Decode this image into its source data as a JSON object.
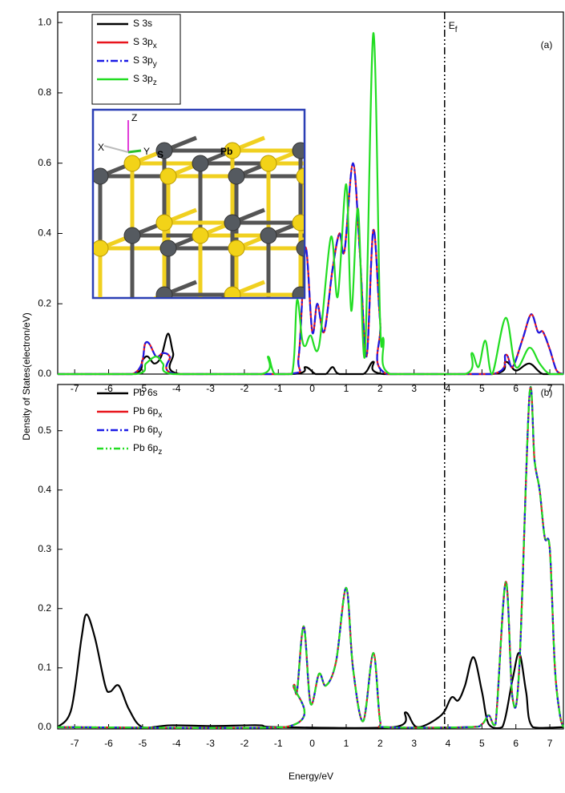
{
  "chart_data": [
    {
      "type": "line",
      "panel_label": "(a)",
      "ylabel": "Density of States(electron/eV)",
      "fermi_level": 3.9,
      "fermi_label": "E",
      "fermi_sub": "f",
      "xlim": [
        -7.5,
        7.4
      ],
      "ylim": [
        0,
        1.03
      ],
      "xticks": [
        -7,
        -6,
        -5,
        -4,
        -3,
        -2,
        -1,
        0,
        1,
        2,
        3,
        4,
        5,
        6,
        7
      ],
      "yticks": [
        {
          "value": 0,
          "label": "0.0"
        },
        0.2,
        0.4,
        0.6,
        0.8,
        {
          "value": 1,
          "label": "1.0"
        }
      ],
      "inset_labels": [
        "Z",
        "Y",
        "X",
        "S",
        "Pb"
      ],
      "series": [
        {
          "name": "S 3s",
          "sub": "",
          "color": "#000000",
          "dash": "solid",
          "x": [
            -7.5,
            -5.3,
            -5.0,
            -4.85,
            -4.65,
            -4.45,
            -4.25,
            -4.1,
            -3.9,
            -0.6,
            -0.2,
            0.1,
            0.4,
            0.6,
            0.8,
            1.5,
            1.8,
            2.1,
            5.3,
            5.7,
            6.0,
            6.4,
            6.8,
            7.4
          ],
          "values": [
            0,
            0,
            0.04,
            0.05,
            0.03,
            0.05,
            0.115,
            0.06,
            0,
            0,
            0.02,
            0,
            0,
            0.02,
            0,
            0,
            0.035,
            0,
            0,
            0.035,
            0.01,
            0.03,
            0,
            0
          ]
        },
        {
          "name": "S 3p",
          "sub": "x",
          "color": "#e8141c",
          "dash": "solid",
          "x": [
            -7.5,
            -5.3,
            -4.9,
            -4.6,
            -4.4,
            -4.2,
            -4.0,
            -0.7,
            -0.4,
            -0.2,
            0,
            0.15,
            0.35,
            0.6,
            0.8,
            0.95,
            1.2,
            1.4,
            1.6,
            1.8,
            2.0,
            2.2,
            5.3,
            5.7,
            5.9,
            6.2,
            6.45,
            6.65,
            6.8,
            7.0,
            7.2,
            7.4
          ],
          "values": [
            0,
            0,
            0.09,
            0.05,
            0.06,
            0.05,
            0,
            0,
            0.05,
            0.36,
            0.12,
            0.2,
            0.12,
            0.3,
            0.4,
            0.35,
            0.6,
            0.35,
            0.05,
            0.41,
            0.15,
            0,
            0,
            0.055,
            0.02,
            0.1,
            0.17,
            0.12,
            0.12,
            0.07,
            0.01,
            0
          ]
        },
        {
          "name": "S 3p",
          "sub": "y",
          "color": "#1a1ae6",
          "dash": "dashdot",
          "x": [
            -7.5,
            -5.3,
            -4.9,
            -4.6,
            -4.4,
            -4.2,
            -4.0,
            -0.7,
            -0.4,
            -0.2,
            0,
            0.15,
            0.35,
            0.6,
            0.8,
            0.95,
            1.2,
            1.4,
            1.6,
            1.8,
            2.0,
            2.2,
            5.3,
            5.7,
            5.9,
            6.2,
            6.45,
            6.65,
            6.8,
            7.0,
            7.2,
            7.4
          ],
          "values": [
            0,
            0,
            0.09,
            0.05,
            0.06,
            0.05,
            0,
            0,
            0.05,
            0.36,
            0.12,
            0.2,
            0.12,
            0.3,
            0.4,
            0.35,
            0.6,
            0.35,
            0.05,
            0.41,
            0.15,
            0,
            0,
            0.055,
            0.02,
            0.1,
            0.17,
            0.12,
            0.12,
            0.07,
            0.01,
            0
          ]
        },
        {
          "name": "S 3p",
          "sub": "z",
          "color": "#22dd22",
          "dash": "solid",
          "x": [
            -7.5,
            -5.2,
            -4.9,
            -4.6,
            -4.4,
            -4.1,
            -1.5,
            -1.3,
            -1.1,
            -0.6,
            -0.45,
            -0.3,
            -0.2,
            -0.05,
            0.2,
            0.55,
            0.75,
            1.0,
            1.15,
            1.35,
            1.55,
            1.8,
            2.0,
            2.1,
            2.3,
            4.5,
            4.7,
            4.9,
            5.1,
            5.3,
            5.7,
            6.0,
            6.4,
            6.7,
            7.0,
            7.4
          ],
          "values": [
            0,
            0,
            0.03,
            0.05,
            0.03,
            0,
            0,
            0.05,
            0,
            0,
            0.21,
            0.1,
            0.08,
            0.11,
            0.08,
            0.39,
            0.22,
            0.54,
            0.18,
            0.47,
            0.05,
            0.97,
            0.15,
            0.1,
            0,
            0,
            0.06,
            0.02,
            0.095,
            0,
            0.16,
            0.02,
            0.075,
            0.03,
            0,
            0
          ]
        }
      ]
    },
    {
      "type": "line",
      "panel_label": "(b)",
      "xlabel": "Energy/eV",
      "xlim": [
        -7.5,
        7.4
      ],
      "ylim": [
        -0.003,
        0.578
      ],
      "xticks": [
        -7,
        -6,
        -5,
        -4,
        -3,
        -2,
        -1,
        0,
        1,
        2,
        3,
        4,
        5,
        6,
        7
      ],
      "yticks": [
        {
          "value": 0,
          "label": "0.0"
        },
        0.1,
        0.2,
        0.3,
        0.4,
        0.5
      ],
      "series": [
        {
          "name": "Pb 6s",
          "sub": "",
          "color": "#000000",
          "dash": "solid",
          "x": [
            -7.5,
            -7.1,
            -6.8,
            -6.65,
            -6.4,
            -6.1,
            -5.95,
            -5.7,
            -5.4,
            -5.0,
            -4.2,
            -3,
            -2,
            -1.5,
            -1,
            2.4,
            2.75,
            3.1,
            3.8,
            4.1,
            4.3,
            4.5,
            4.75,
            5.0,
            5.2,
            5.6,
            5.9,
            6.1,
            6.3,
            6.5,
            7.4
          ],
          "values": [
            0,
            0.03,
            0.15,
            0.19,
            0.15,
            0.07,
            0.06,
            0.07,
            0.03,
            0,
            0.003,
            0.002,
            0.003,
            0.003,
            0,
            0,
            0.025,
            0,
            0.02,
            0.05,
            0.045,
            0.07,
            0.118,
            0.06,
            0.005,
            0,
            0.08,
            0.125,
            0.06,
            0,
            0
          ]
        },
        {
          "name": "Pb 6p",
          "sub": "x",
          "color": "#e8141c",
          "dash": "solid",
          "x": [
            -7.5,
            -0.8,
            -0.55,
            -0.45,
            -0.25,
            -0.05,
            0.2,
            0.4,
            0.7,
            1.0,
            1.2,
            1.5,
            1.8,
            2.0,
            2.2,
            4.6,
            5.0,
            5.2,
            5.4,
            5.7,
            5.9,
            6.1,
            6.4,
            6.55,
            6.7,
            6.85,
            7.0,
            7.15,
            7.3,
            7.4
          ],
          "values": [
            0,
            0,
            0.07,
            0.06,
            0.17,
            0.04,
            0.09,
            0.07,
            0.11,
            0.235,
            0.1,
            0.01,
            0.125,
            0.01,
            0,
            0,
            0.005,
            0.02,
            0.005,
            0.245,
            0.05,
            0.1,
            0.56,
            0.45,
            0.4,
            0.32,
            0.3,
            0.1,
            0.02,
            0
          ]
        },
        {
          "name": "Pb 6p",
          "sub": "y",
          "color": "#1a1ae6",
          "dash": "dashdot",
          "x": [
            -7.5,
            -0.8,
            -0.55,
            -0.45,
            -0.25,
            -0.05,
            0.2,
            0.4,
            0.7,
            1.0,
            1.2,
            1.5,
            1.8,
            2.0,
            2.2,
            4.6,
            5.0,
            5.2,
            5.4,
            5.7,
            5.9,
            6.1,
            6.4,
            6.55,
            6.7,
            6.85,
            7.0,
            7.15,
            7.3,
            7.4
          ],
          "values": [
            0,
            0,
            0.07,
            0.06,
            0.17,
            0.04,
            0.09,
            0.07,
            0.11,
            0.235,
            0.1,
            0.01,
            0.125,
            0.01,
            0,
            0,
            0.005,
            0.02,
            0.005,
            0.245,
            0.05,
            0.1,
            0.56,
            0.45,
            0.4,
            0.32,
            0.3,
            0.1,
            0.02,
            0
          ]
        },
        {
          "name": "Pb 6p",
          "sub": "z",
          "color": "#22dd22",
          "dash": "dashdotdot",
          "x": [
            -7.5,
            -0.8,
            -0.55,
            -0.45,
            -0.25,
            -0.05,
            0.2,
            0.4,
            0.7,
            1.0,
            1.2,
            1.5,
            1.8,
            2.0,
            2.2,
            4.6,
            5.0,
            5.2,
            5.4,
            5.7,
            5.9,
            6.1,
            6.4,
            6.55,
            6.7,
            6.85,
            7.0,
            7.15,
            7.3,
            7.4
          ],
          "values": [
            0,
            0,
            0.07,
            0.06,
            0.17,
            0.04,
            0.09,
            0.07,
            0.11,
            0.235,
            0.1,
            0.01,
            0.125,
            0.01,
            0,
            0,
            0.005,
            0.02,
            0.005,
            0.245,
            0.05,
            0.1,
            0.56,
            0.45,
            0.4,
            0.32,
            0.3,
            0.1,
            0.02,
            0
          ]
        }
      ]
    }
  ]
}
